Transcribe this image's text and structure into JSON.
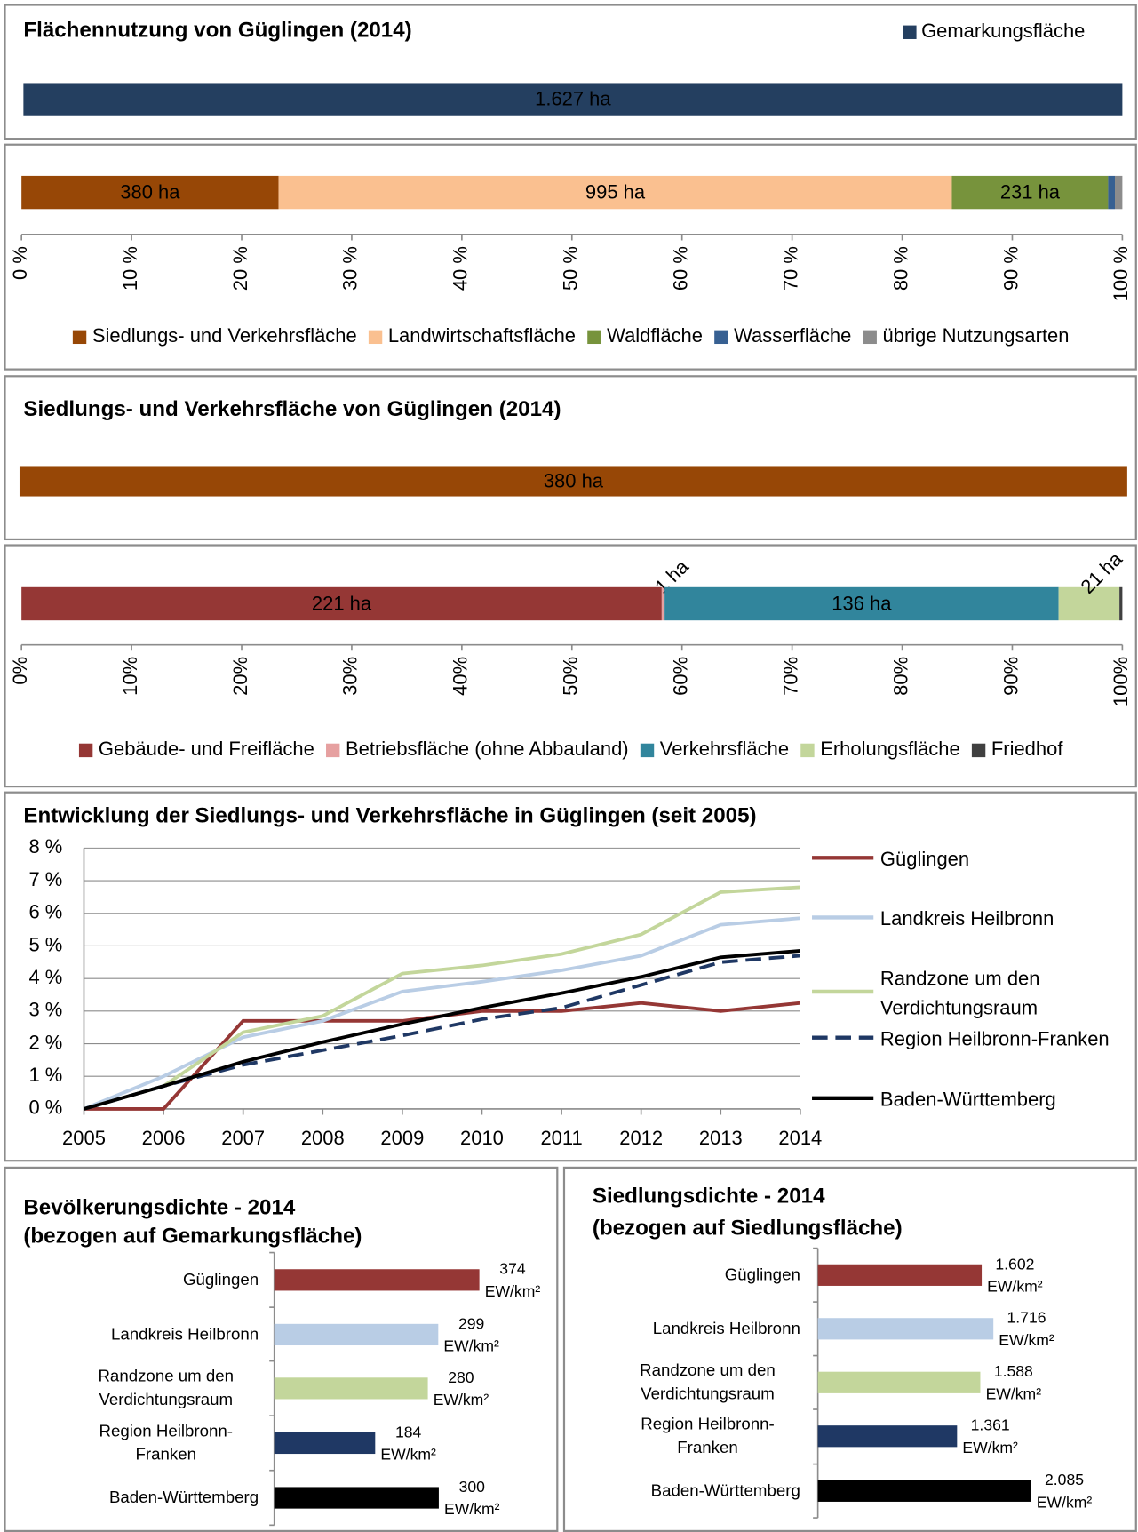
{
  "chart_data": [
    {
      "type": "bar",
      "title": "Flächennutzung von Güglingen (2014)",
      "series": [
        {
          "name": "Gemarkungsfläche",
          "color": "#243f60",
          "values": [
            1627
          ],
          "value_labels": [
            "1.627 ha"
          ]
        }
      ]
    },
    {
      "type": "stacked_bar_100",
      "series": [
        {
          "name": "Siedlungs- und Verkehrsfläche",
          "color": "#974706",
          "values": [
            380
          ],
          "value_labels": [
            "380 ha"
          ]
        },
        {
          "name": "Landwirtschaftsfläche",
          "color": "#fac090",
          "values": [
            995
          ],
          "value_labels": [
            "995 ha"
          ]
        },
        {
          "name": "Waldfläche",
          "color": "#77933c",
          "values": [
            231
          ],
          "value_labels": [
            "231 ha"
          ]
        },
        {
          "name": "Wasserfläche",
          "color": "#376092",
          "values": [
            10
          ]
        },
        {
          "name": "übrige Nutzungsarten",
          "color": "#8c8c8c",
          "values": [
            11
          ]
        }
      ],
      "xlim": [
        0,
        100
      ],
      "xticks": [
        {
          "value": 0,
          "label": "0 %"
        },
        {
          "value": 10,
          "label": "10 %"
        },
        {
          "value": 20,
          "label": "20 %"
        },
        {
          "value": 30,
          "label": "30 %"
        },
        {
          "value": 40,
          "label": "40 %"
        },
        {
          "value": 50,
          "label": "50 %"
        },
        {
          "value": 60,
          "label": "60 %"
        },
        {
          "value": 70,
          "label": "70 %"
        },
        {
          "value": 80,
          "label": "80 %"
        },
        {
          "value": 90,
          "label": "90 %"
        },
        {
          "value": 100,
          "label": "100 %"
        }
      ]
    },
    {
      "type": "bar",
      "title": "Siedlungs- und Verkehrsfläche von Güglingen (2014)",
      "series": [
        {
          "color": "#974706",
          "values": [
            380
          ],
          "value_labels": [
            "380 ha"
          ]
        }
      ]
    },
    {
      "type": "stacked_bar_100",
      "series": [
        {
          "name": "Gebäude- und Freifläche",
          "color": "#953735",
          "values": [
            221
          ],
          "value_labels": [
            "221 ha"
          ]
        },
        {
          "name": "Betriebsfläche (ohne Abbauland)",
          "color": "#e6a0a0",
          "values": [
            1
          ],
          "value_labels": [
            "1 ha"
          ]
        },
        {
          "name": "Verkehrsfläche",
          "color": "#31859c",
          "values": [
            136
          ],
          "value_labels": [
            "136 ha"
          ]
        },
        {
          "name": "Erholungsfläche",
          "color": "#c3d69b",
          "values": [
            21
          ],
          "value_labels": [
            "21 ha"
          ]
        },
        {
          "name": "Friedhof",
          "color": "#404040",
          "values": [
            1
          ]
        }
      ],
      "xlim": [
        0,
        100
      ],
      "xticks": [
        {
          "value": 0,
          "label": "0%"
        },
        {
          "value": 10,
          "label": "10%"
        },
        {
          "value": 20,
          "label": "20%"
        },
        {
          "value": 30,
          "label": "30%"
        },
        {
          "value": 40,
          "label": "40%"
        },
        {
          "value": 50,
          "label": "50%"
        },
        {
          "value": 60,
          "label": "60%"
        },
        {
          "value": 70,
          "label": "70%"
        },
        {
          "value": 80,
          "label": "80%"
        },
        {
          "value": 90,
          "label": "90%"
        },
        {
          "value": 100,
          "label": "100%"
        }
      ]
    },
    {
      "type": "line",
      "title": "Entwicklung der Siedlungs- und Verkehrsfläche in Güglingen (seit 2005)",
      "x": [
        2005,
        2006,
        2007,
        2008,
        2009,
        2010,
        2011,
        2012,
        2013,
        2014
      ],
      "xlim": [
        2005,
        2014
      ],
      "xticks": [
        2005,
        2006,
        2007,
        2008,
        2009,
        2010,
        2011,
        2012,
        2013,
        2014
      ],
      "ylim": [
        0,
        8
      ],
      "yticks": [
        {
          "value": 0,
          "label": "0 %"
        },
        {
          "value": 1,
          "label": "1 %"
        },
        {
          "value": 2,
          "label": "2 %"
        },
        {
          "value": 3,
          "label": "3 %"
        },
        {
          "value": 4,
          "label": "4 %"
        },
        {
          "value": 5,
          "label": "5 %"
        },
        {
          "value": 6,
          "label": "6 %"
        },
        {
          "value": 7,
          "label": "7 %"
        },
        {
          "value": 8,
          "label": "8 %"
        }
      ],
      "grid": true,
      "series": [
        {
          "name": "Güglingen",
          "color": "#953735",
          "values": [
            0,
            0,
            2.7,
            2.7,
            2.7,
            3.0,
            3.0,
            3.25,
            3.0,
            3.25
          ]
        },
        {
          "name": "Landkreis Heilbronn",
          "color": "#b9cde5",
          "values": [
            0,
            1.0,
            2.2,
            2.7,
            3.6,
            3.9,
            4.25,
            4.7,
            5.65,
            5.85
          ]
        },
        {
          "name": "Randzone um den Verdichtungsraum",
          "color": "#c3d69b",
          "values": [
            0,
            0.7,
            2.35,
            2.85,
            4.15,
            4.4,
            4.75,
            5.35,
            6.65,
            6.8
          ]
        },
        {
          "name": "Region Heilbronn-Franken",
          "color": "#1f3864",
          "style": "dashed",
          "values": [
            0,
            0.7,
            1.35,
            1.8,
            2.25,
            2.75,
            3.1,
            3.8,
            4.5,
            4.7
          ]
        },
        {
          "name": "Baden-Württemberg",
          "color": "#000000",
          "values": [
            0,
            0.7,
            1.45,
            2.05,
            2.6,
            3.1,
            3.55,
            4.05,
            4.65,
            4.85
          ]
        }
      ]
    },
    {
      "type": "hbar",
      "title": "Bevölkerungsdichte - 2014",
      "subtitle": "(bezogen auf Gemarkungsfläche)",
      "categories": [
        "Güglingen",
        "Landkreis Heilbronn",
        "Randzone um den Verdichtungsraum",
        "Region Heilbronn-Franken",
        "Baden-Württemberg"
      ],
      "values": [
        374,
        299,
        280,
        184,
        300
      ],
      "value_labels": [
        "374 EW/km²",
        "299 EW/km²",
        "280 EW/km²",
        "184 EW/km²",
        "300 EW/km²"
      ],
      "colors": [
        "#953735",
        "#b9cde5",
        "#c3d69b",
        "#1f3864",
        "#000000"
      ],
      "xlim": [
        0,
        500
      ]
    },
    {
      "type": "hbar",
      "title": "Siedlungsdichte - 2014",
      "subtitle": "(bezogen auf Siedlungsfläche)",
      "categories": [
        "Güglingen",
        "Landkreis Heilbronn",
        "Randzone um den Verdichtungsraum",
        "Region Heilbronn-Franken",
        "Baden-Württemberg"
      ],
      "values": [
        1602,
        1716,
        1588,
        1361,
        2085
      ],
      "value_labels": [
        "1.602 EW/km²",
        "1.716 EW/km²",
        "1.588 EW/km²",
        "1.361 EW/km²",
        "2.085 EW/km²"
      ],
      "colors": [
        "#953735",
        "#b9cde5",
        "#c3d69b",
        "#1f3864",
        "#000000"
      ],
      "xlim": [
        0,
        2500
      ]
    }
  ]
}
